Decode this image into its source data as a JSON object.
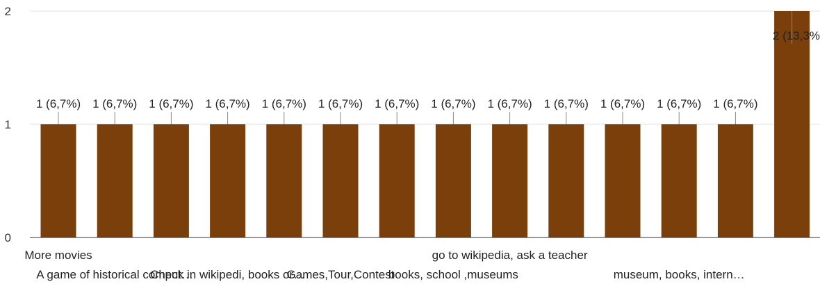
{
  "chart_data": {
    "type": "bar",
    "categories": [
      "More movies",
      "A game of historical comput…",
      "",
      "Check in wikipedi, books or…",
      "",
      "Games,Tour,Contest",
      "",
      "books, school ,museums",
      "go to wikipedia, ask a teacher",
      "",
      "",
      "museum, books, intern…",
      "",
      ""
    ],
    "values": [
      1,
      1,
      1,
      1,
      1,
      1,
      1,
      1,
      1,
      1,
      1,
      1,
      1,
      2
    ],
    "data_labels": [
      "1 (6,7%)",
      "1 (6,7%)",
      "1 (6,7%)",
      "1 (6,7%)",
      "1 (6,7%)",
      "1 (6,7%)",
      "1 (6,7%)",
      "1 (6,7%)",
      "1 (6,7%)",
      "1 (6,7%)",
      "1 (6,7%)",
      "1 (6,7%)",
      "1 (6,7%)",
      "2 (13,3%"
    ],
    "y_ticks": [
      0,
      1,
      2
    ],
    "ylim": [
      0,
      2
    ],
    "grid": true,
    "title": "",
    "xlabel": "",
    "ylabel": "",
    "colors": {
      "bar": "#7b3f0c",
      "grid": "#e0e0e0",
      "axis": "#333333",
      "leader": "#888888"
    }
  }
}
